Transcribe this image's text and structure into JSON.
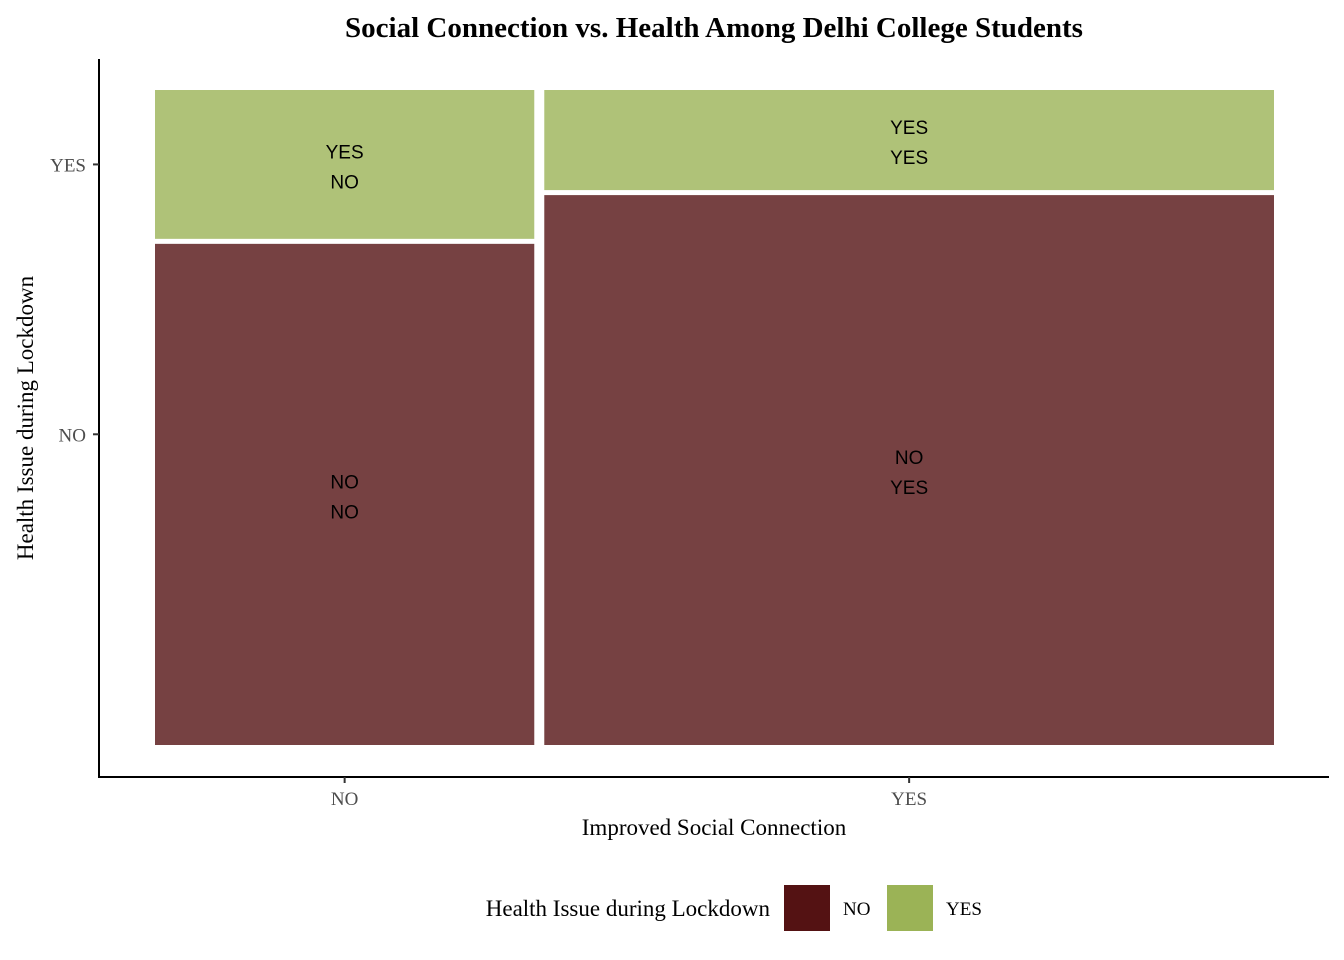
{
  "chart_data": {
    "type": "mosaic",
    "title": "Social Connection vs. Health Among Delhi College Students",
    "xlabel": "Improved Social Connection",
    "ylabel": "Health Issue during Lockdown",
    "x_categories": [
      "NO",
      "YES"
    ],
    "y_categories": [
      "NO",
      "YES"
    ],
    "x_widths": [
      0.342,
      0.658
    ],
    "cells": [
      {
        "x": "NO",
        "y": "NO",
        "fraction": 0.771,
        "label_top": "NO",
        "label_bottom": "NO"
      },
      {
        "x": "NO",
        "y": "YES",
        "fraction": 0.229,
        "label_top": "YES",
        "label_bottom": "NO"
      },
      {
        "x": "YES",
        "y": "NO",
        "fraction": 0.846,
        "label_top": "NO",
        "label_bottom": "YES"
      },
      {
        "x": "YES",
        "y": "YES",
        "fraction": 0.154,
        "label_top": "YES",
        "label_bottom": "YES"
      }
    ],
    "legend": {
      "title": "Health Issue during Lockdown",
      "position": "bottom",
      "entries": [
        {
          "label": "NO",
          "color": "#541213"
        },
        {
          "label": "YES",
          "color": "#9BB356"
        }
      ]
    },
    "fill_opacity": 0.8,
    "grid": false
  }
}
